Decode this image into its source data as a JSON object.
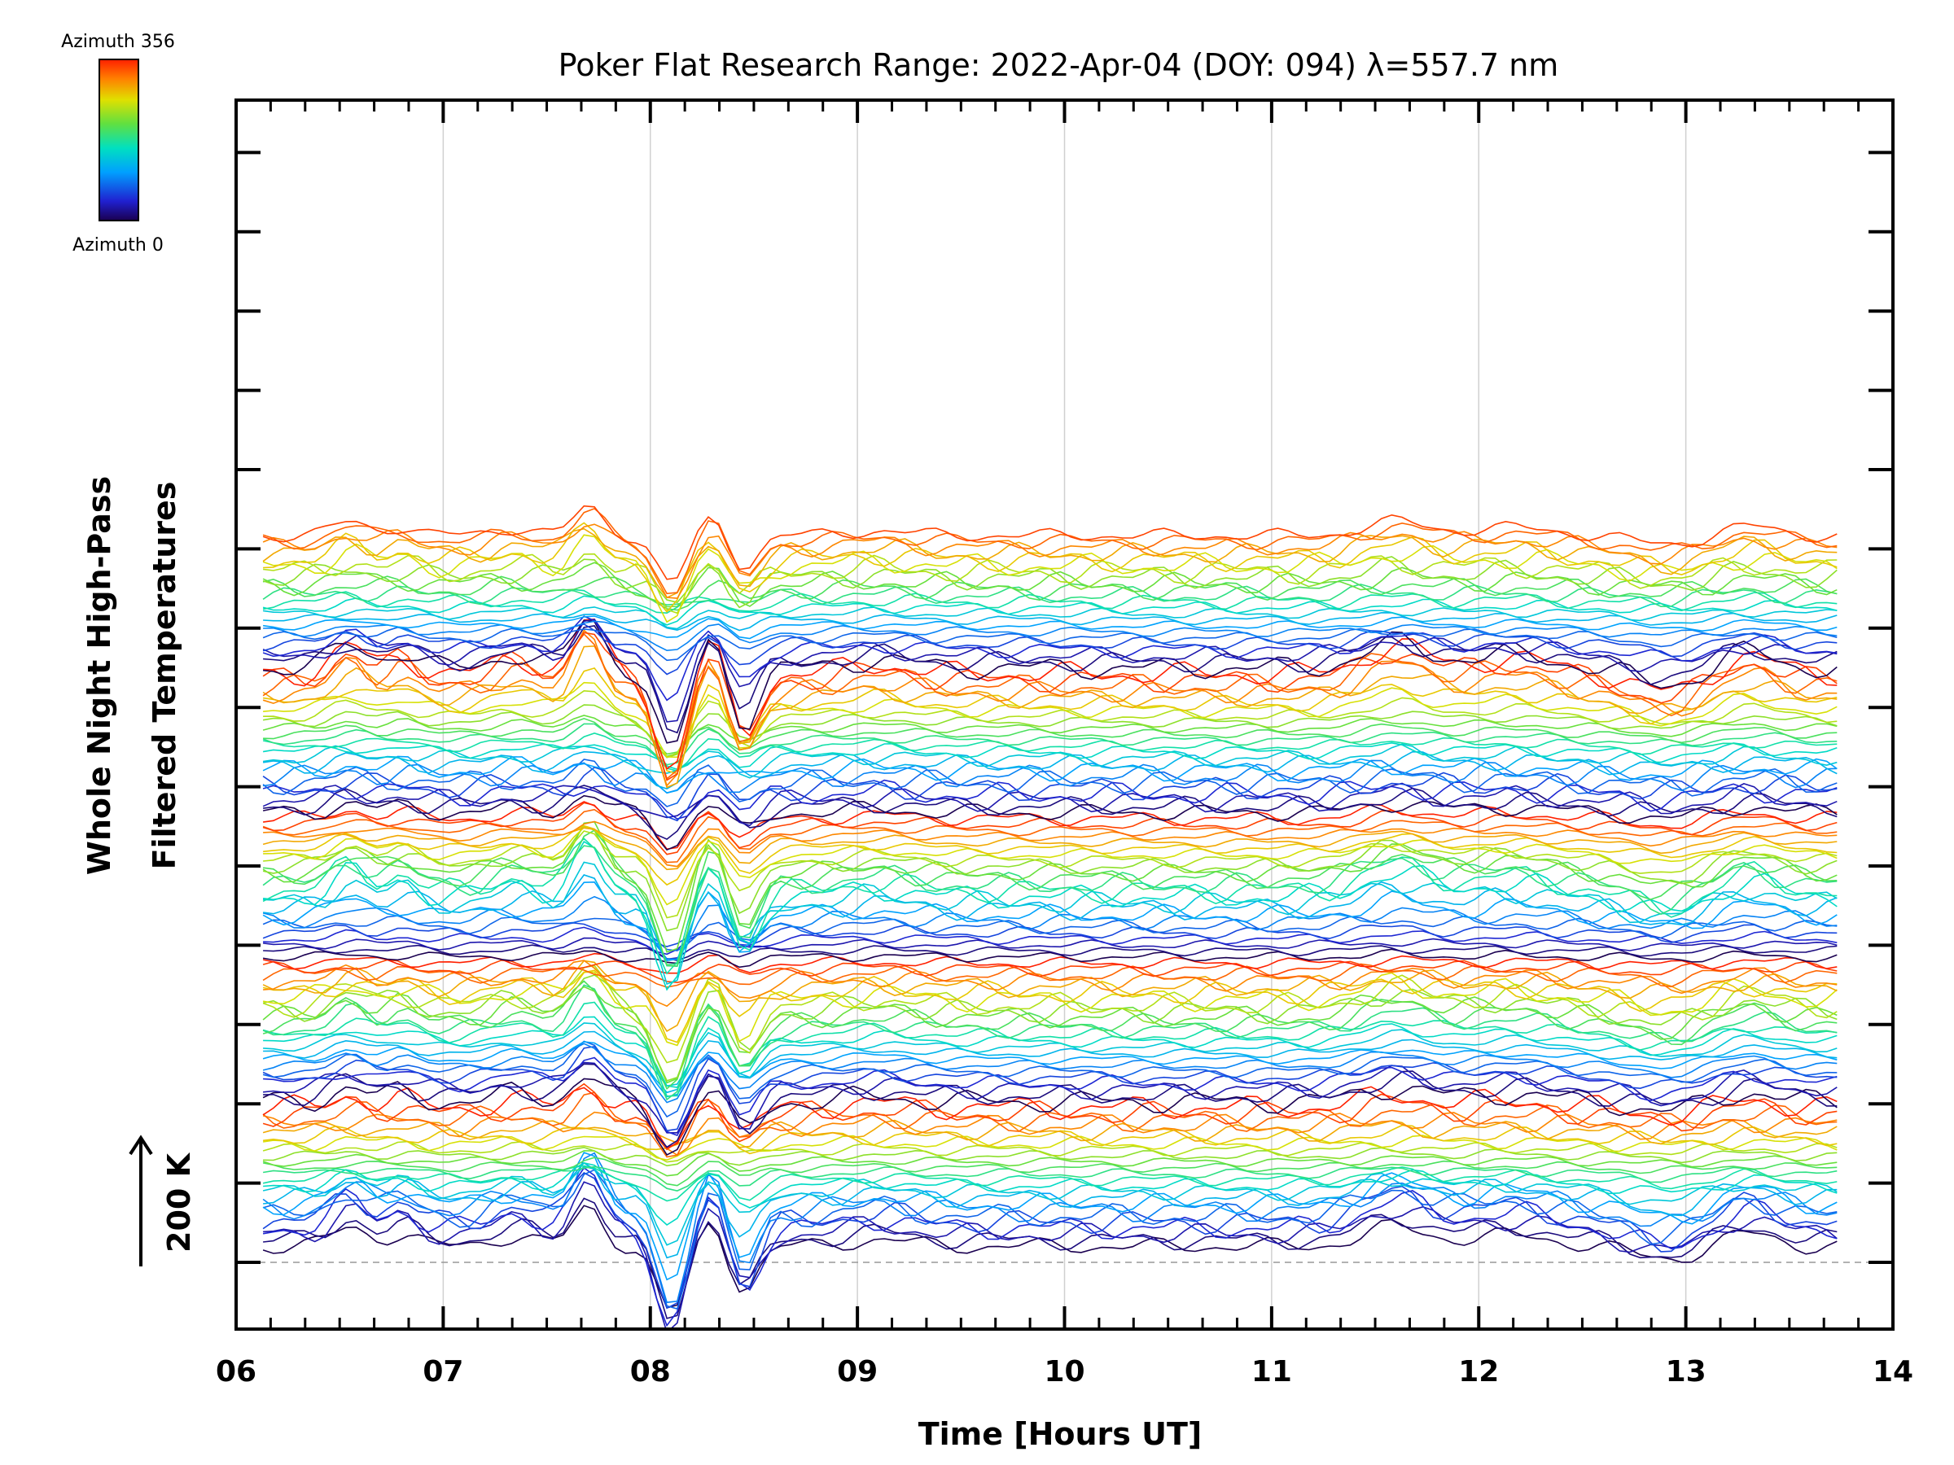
{
  "chart_data": {
    "type": "line",
    "title": "Poker Flat Research Range: 2022-Apr-04 (DOY: 094) λ=557.7 nm",
    "xlabel": "Time [Hours UT]",
    "ylabel_line1": "Whole Night High-Pass",
    "ylabel_line2": "Filtered Temperatures",
    "scale_bar_label": "200 K",
    "xlim": [
      6,
      14
    ],
    "x_ticks": [
      "06",
      "07",
      "08",
      "09",
      "10",
      "11",
      "12",
      "13",
      "14"
    ],
    "x_range_data": [
      6.13,
      13.73
    ],
    "grid": "vertical",
    "n_traces": 119,
    "colorbar": {
      "top_label": "Azimuth 356",
      "bottom_label": "Azimuth 0",
      "colormap": "rainbow",
      "placement": "top-left"
    },
    "features": [
      {
        "name": "sharp dip",
        "x": 8.1
      },
      {
        "name": "secondary dip",
        "x": 8.45
      },
      {
        "name": "peak",
        "x": 7.7
      },
      {
        "name": "peak",
        "x": 11.6
      }
    ],
    "colors": {
      "axes": "#000000",
      "grid": "#d0d0d0",
      "baseline": "#999999"
    }
  }
}
